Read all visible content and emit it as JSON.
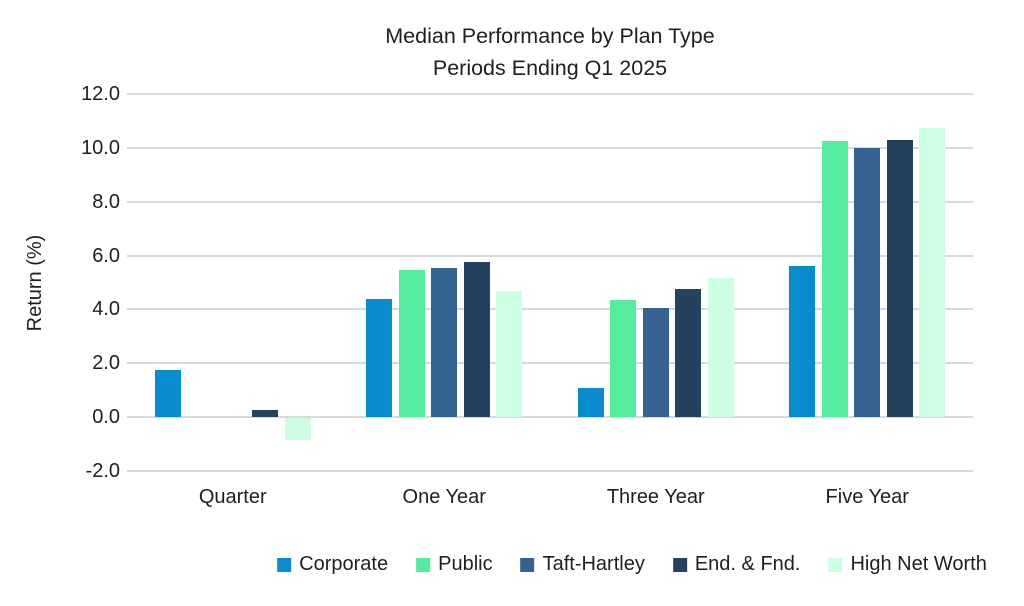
{
  "title": {
    "line1": "Median Performance by Plan Type",
    "line2": "Periods Ending Q1 2025"
  },
  "y_axis": {
    "label": "Return (%)",
    "ticks": [
      "12.0",
      "10.0",
      "8.0",
      "6.0",
      "4.0",
      "2.0",
      "0.0",
      "-2.0"
    ]
  },
  "chart_data": {
    "type": "bar",
    "title": "Median Performance by Plan Type",
    "subtitle": "Periods Ending Q1 2025",
    "xlabel": "",
    "ylabel": "Return (%)",
    "ylim": [
      -2.0,
      12.0
    ],
    "ytick_step": 2.0,
    "grid": "horizontal-only",
    "legend_position": "bottom",
    "categories": [
      "Quarter",
      "One Year",
      "Three Year",
      "Five Year"
    ],
    "series": [
      {
        "name": "Corporate",
        "color": "#0a8bce",
        "values": [
          1.75,
          4.4,
          1.1,
          5.6
        ]
      },
      {
        "name": "Public",
        "color": "#55ec9f",
        "values": [
          0.0,
          5.45,
          4.35,
          10.25
        ]
      },
      {
        "name": "Taft-Hartley",
        "color": "#356390",
        "values": [
          0.0,
          5.55,
          4.05,
          10.0
        ]
      },
      {
        "name": "End. & Fnd.",
        "color": "#24425e",
        "values": [
          0.25,
          5.75,
          4.75,
          10.3
        ]
      },
      {
        "name": "High Net Worth",
        "color": "#cdfee3",
        "values": [
          -0.8,
          4.7,
          5.15,
          10.75
        ]
      }
    ],
    "colors": {
      "gridline": "#d9d9d9",
      "text": "#1f1f1f",
      "background": "#ffffff"
    }
  }
}
